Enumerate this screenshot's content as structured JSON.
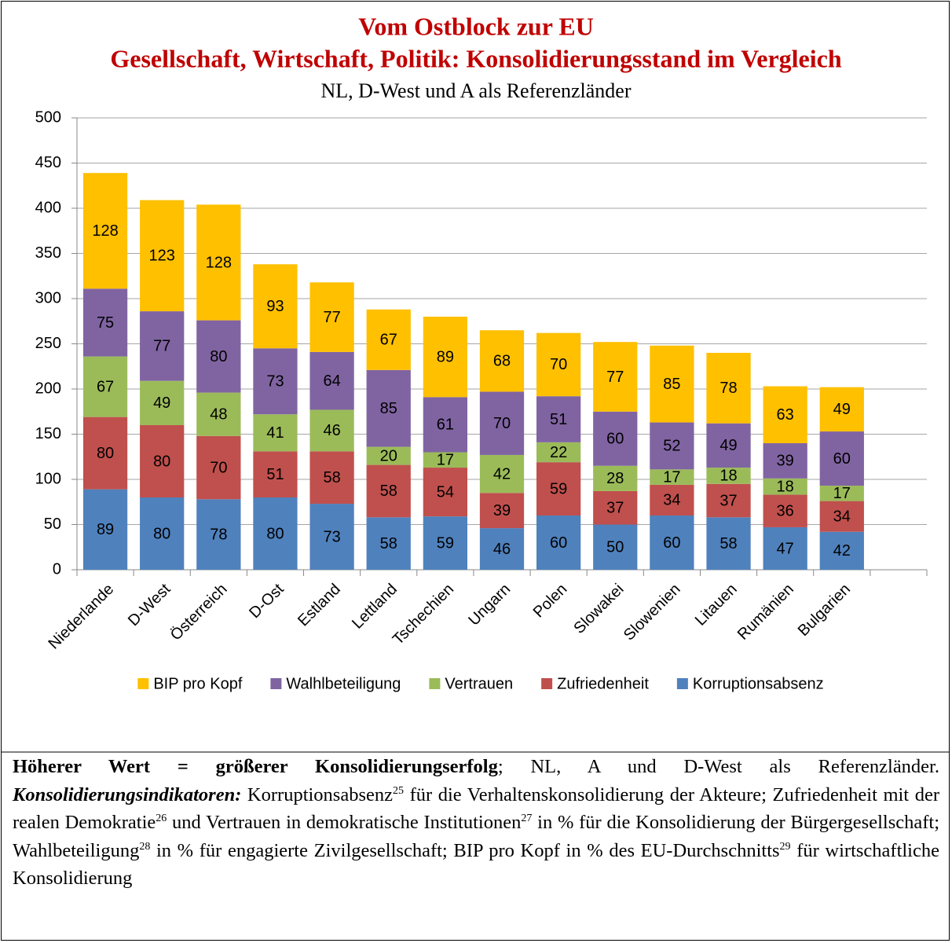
{
  "chart_data": {
    "type": "stacked_bar",
    "title": "Vom Ostblock zur EU",
    "subtitle": "Gesellschaft, Wirtschaft, Politik: Konsolidierungsstand im Vergleich",
    "subtitle2": "NL, D-West und A als Referenzländer",
    "categories": [
      "Niederlande",
      "D-West",
      "Österreich",
      "D-Ost",
      "Estland",
      "Lettland",
      "Tschechien",
      "Ungarn",
      "Polen",
      "Slowakei",
      "Slowenien",
      "Litauen",
      "Rumänien",
      "Bulgarien",
      null
    ],
    "series": [
      {
        "name": "Korruptionsabsenz",
        "color": "#4f81bd",
        "values": [
          89,
          80,
          78,
          80,
          73,
          58,
          59,
          46,
          60,
          50,
          60,
          58,
          47,
          42,
          null
        ]
      },
      {
        "name": "Zufriedenheit",
        "color": "#c0504d",
        "values": [
          80,
          80,
          70,
          51,
          58,
          58,
          54,
          39,
          59,
          37,
          34,
          37,
          36,
          34,
          null
        ]
      },
      {
        "name": "Vertrauen",
        "color": "#9bbb59",
        "values": [
          67,
          49,
          48,
          41,
          46,
          20,
          17,
          42,
          22,
          28,
          17,
          18,
          18,
          17,
          null
        ]
      },
      {
        "name": "Walhlbeteiligung",
        "color": "#8064a2",
        "values": [
          75,
          77,
          80,
          73,
          64,
          85,
          61,
          70,
          51,
          60,
          52,
          49,
          39,
          60,
          null
        ]
      },
      {
        "name": "BIP pro Kopf",
        "color": "#ffc000",
        "values": [
          128,
          123,
          128,
          93,
          77,
          67,
          89,
          68,
          70,
          77,
          85,
          78,
          63,
          49,
          null
        ]
      }
    ],
    "ylim": [
      0,
      500
    ],
    "yticks": [
      0,
      50,
      100,
      150,
      200,
      250,
      300,
      350,
      400,
      450,
      500
    ],
    "grid": true,
    "legend": "bottom"
  },
  "caption": [
    {
      "text": "Höherer Wert = größerer Konsolidierungserfolg",
      "style": "bold"
    },
    {
      "text": "; NL, A und D-West als Referenzländer. ",
      "style": "normal"
    },
    {
      "text": "Konsolidierungsindikatoren:",
      "style": "bolditalic"
    },
    {
      "text": " Korruptionsabsenz",
      "style": "normal"
    },
    {
      "text": "25",
      "style": "sup"
    },
    {
      "text": " für die Verhaltenskonsolidierung der Akteure; Zufriedenheit mit der realen Demokratie",
      "style": "normal"
    },
    {
      "text": "26",
      "style": "sup"
    },
    {
      "text": " und Vertrauen in demokratische Institu­tionen",
      "style": "normal"
    },
    {
      "text": "27",
      "style": "sup"
    },
    {
      "text": " in % für die Konsolidierung der Bürgergesellschaft; Wahlbeteiligung",
      "style": "normal"
    },
    {
      "text": "28",
      "style": "sup"
    },
    {
      "text": " in % für en­gagierte Zivilgesellschaft; BIP pro Kopf in % des EU-Durchschnitts",
      "style": "normal"
    },
    {
      "text": "29",
      "style": "sup"
    },
    {
      "text": " für wirtschaftliche Konsolidierung",
      "style": "normal"
    }
  ]
}
